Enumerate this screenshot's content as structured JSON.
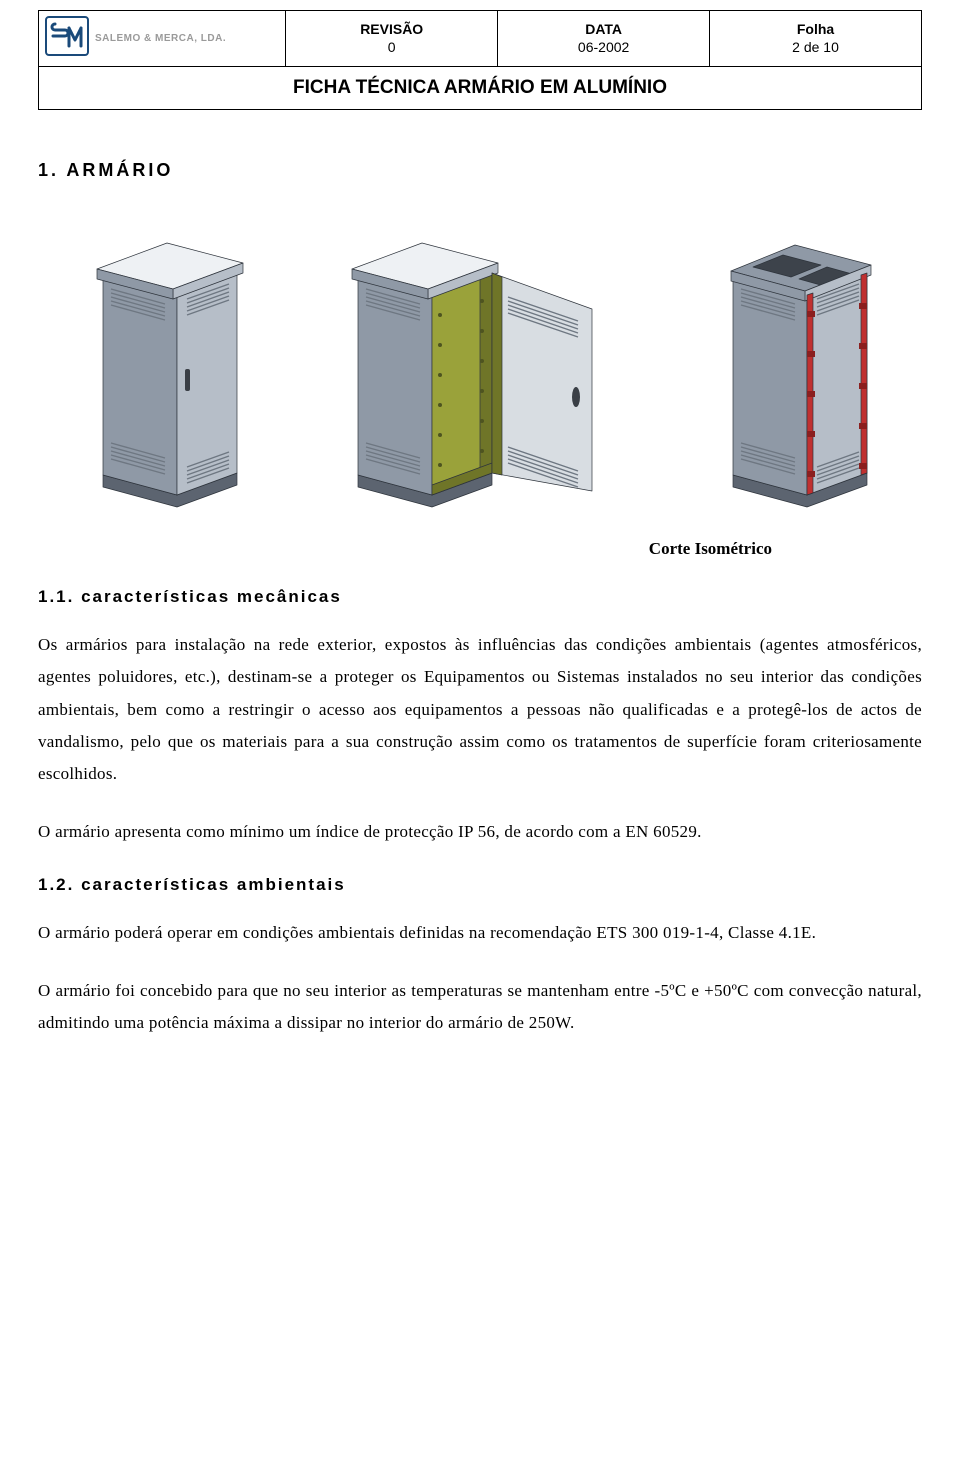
{
  "header": {
    "logo_text": "SALEMO & MERCA, LDA.",
    "revisao_label": "REVISÃO",
    "revisao_value": "0",
    "data_label": "DATA",
    "data_value": "06-2002",
    "folha_label": "Folha",
    "folha_value": "2 de 10",
    "doc_title": "FICHA  TÉCNICA ARMÁRIO EM ALUMÍNIO"
  },
  "section1": {
    "heading": "1.   ARMÁRIO",
    "caption": "Corte Isométrico",
    "sub11_heading": "1.1.  características mecânicas",
    "p1": "Os armários para instalação na rede exterior, expostos às influências das condições ambientais (agentes atmosféricos, agentes poluidores, etc.), destinam-se a proteger os Equipamentos ou Sistemas instalados no seu interior das condições ambientais, bem como a restringir o acesso aos equipamentos a pessoas não qualificadas e a protegê-los de actos de vandalismo, pelo que os materiais para a sua construção assim como os tratamentos de superfície foram criteriosamente escolhidos.",
    "p2": "O  armário apresenta como mínimo um índice de protecção IP 56, de acordo com a EN 60529.",
    "sub12_heading": "1.2.  características ambientais",
    "p3": "O armário poderá operar em condições ambientais definidas na recomendação ETS 300 019-1-4, Classe 4.1E.",
    "p4": "O armário foi concebido para que no seu interior as temperaturas se mantenham entre -5ºC e +50ºC com convecção natural, admitindo uma potência máxima a dissipar no interior do armário de 250W."
  },
  "figures": {
    "colors": {
      "body_light": "#d8dde2",
      "body_mid": "#b6bec8",
      "body_dark": "#8f99a6",
      "top_light": "#eef1f4",
      "vent": "#6e7782",
      "interior": "#9aa23a",
      "interior_dark": "#6f7528",
      "base": "#5c6470",
      "edge": "#2e343c",
      "hinge": "#c03030"
    }
  }
}
